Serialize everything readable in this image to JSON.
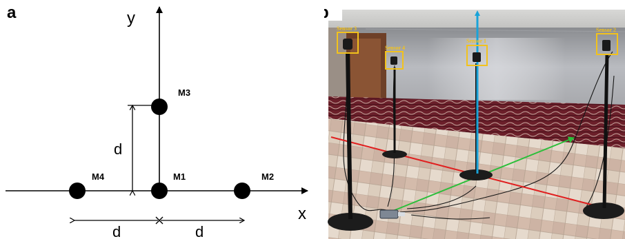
{
  "panel_a": {
    "letter": "a",
    "x_axis_label": "x",
    "y_axis_label": "y",
    "microphones": [
      {
        "label": "M1"
      },
      {
        "label": "M2"
      },
      {
        "label": "M3"
      },
      {
        "label": "M4"
      }
    ],
    "dimension_labels": {
      "vertical": "d",
      "horizontal_left": "d",
      "horizontal_right": "d"
    }
  },
  "panel_b": {
    "letter": "b",
    "sensors": [
      {
        "label": "Sensor 1"
      },
      {
        "label": "Sensor 2"
      },
      {
        "label": "Sensor 3"
      },
      {
        "label": "Sensor 4"
      }
    ],
    "axis_colors": {
      "vertical": "#1aa3d9",
      "horizontal_red": "#e02020",
      "horizontal_green": "#2bbf3a",
      "sensor_box": "#f2c21c"
    }
  }
}
